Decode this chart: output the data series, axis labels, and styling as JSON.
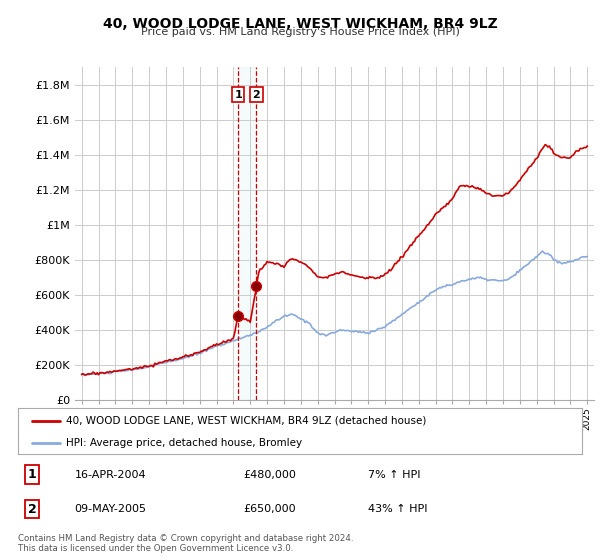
{
  "title": "40, WOOD LODGE LANE, WEST WICKHAM, BR4 9LZ",
  "subtitle": "Price paid vs. HM Land Registry's House Price Index (HPI)",
  "ylabel_ticks": [
    0,
    200000,
    400000,
    600000,
    800000,
    1000000,
    1200000,
    1400000,
    1600000,
    1800000
  ],
  "ylabel_labels": [
    "£0",
    "£200K",
    "£400K",
    "£600K",
    "£800K",
    "£1M",
    "£1.2M",
    "£1.4M",
    "£1.6M",
    "£1.8M"
  ],
  "ylim": [
    0,
    1900000
  ],
  "background_color": "#ffffff",
  "grid_color": "#cccccc",
  "line_color_property": "#cc0000",
  "line_color_hpi": "#88aadd",
  "transaction1_year": 2004.29,
  "transaction1_price": 480000,
  "transaction2_year": 2005.37,
  "transaction2_price": 650000,
  "legend_property": "40, WOOD LODGE LANE, WEST WICKHAM, BR4 9LZ (detached house)",
  "legend_hpi": "HPI: Average price, detached house, Bromley",
  "table_row1": [
    "1",
    "16-APR-2004",
    "£480,000",
    "7% ↑ HPI"
  ],
  "table_row2": [
    "2",
    "09-MAY-2005",
    "£650,000",
    "43% ↑ HPI"
  ],
  "footer": "Contains HM Land Registry data © Crown copyright and database right 2024.\nThis data is licensed under the Open Government Licence v3.0."
}
